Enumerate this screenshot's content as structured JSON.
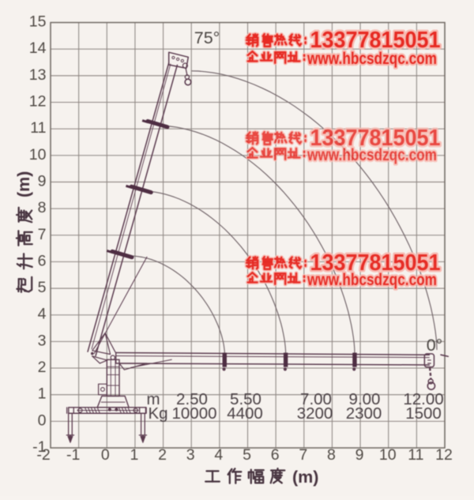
{
  "page": {
    "background": "#f7f3ef",
    "ink_color": "#5a3a4e",
    "grid_color": "#8d8581",
    "text_color": "#4f4944"
  },
  "chart_data": {
    "type": "line",
    "title": "",
    "xlabel": "工作幅度(m)",
    "ylabel": "起升高度(m)",
    "xlim": [
      -2,
      12
    ],
    "ylim": [
      -1,
      15
    ],
    "x_ticks": [
      -2,
      -1,
      0,
      1,
      2,
      3,
      4,
      5,
      6,
      7,
      8,
      9,
      10,
      11,
      12
    ],
    "y_ticks": [
      -1,
      0,
      1,
      2,
      3,
      4,
      5,
      6,
      7,
      8,
      9,
      10,
      11,
      12,
      13,
      14,
      15
    ],
    "grid": true,
    "legend": "none",
    "boom_angle_max_label": "75°",
    "boom_angle_min_label": "0°",
    "boom_pivot": [
      -0.52,
      2.55
    ],
    "boom_tip_at_75deg": [
      2.5,
      13.4
    ],
    "boom_tip_at_0deg": [
      11.7,
      2.45
    ],
    "luffing_arcs": [
      {
        "from": [
          0.85,
          6.22
        ],
        "to": [
          4.18,
          2.58
        ]
      },
      {
        "from": [
          1.28,
          8.66
        ],
        "to": [
          6.35,
          2.58
        ]
      },
      {
        "from": [
          1.86,
          11.12
        ],
        "to": [
          8.8,
          2.58
        ]
      },
      {
        "from": [
          3.02,
          13.18
        ],
        "to": [
          11.72,
          2.7
        ]
      }
    ],
    "load_table": {
      "radius_label": "m",
      "capacity_label": "Kg",
      "columns": [
        {
          "radius_m": "2.50",
          "capacity_kg": "10000"
        },
        {
          "radius_m": "5.50",
          "capacity_kg": "4400"
        },
        {
          "radius_m": "7.00",
          "capacity_kg": "3200"
        },
        {
          "radius_m": "9.00",
          "capacity_kg": "2300"
        },
        {
          "radius_m": "12.00",
          "capacity_kg": "1500"
        }
      ]
    }
  },
  "watermark": {
    "hotline_label": "销售热线：",
    "phone": "13377815051",
    "website_label": "企业网址：",
    "url": "www.hbcsdzqc.com",
    "color": "#e8231c",
    "halo_color": "#f9bab1",
    "instances": [
      {
        "x": 311,
        "baseline1": 60,
        "baseline2": 81,
        "opacity": 0.97
      },
      {
        "x": 311,
        "baseline1": 184,
        "baseline2": 203,
        "opacity": 0.82
      },
      {
        "x": 311,
        "baseline1": 342,
        "baseline2": 361,
        "opacity": 0.95
      }
    ]
  }
}
